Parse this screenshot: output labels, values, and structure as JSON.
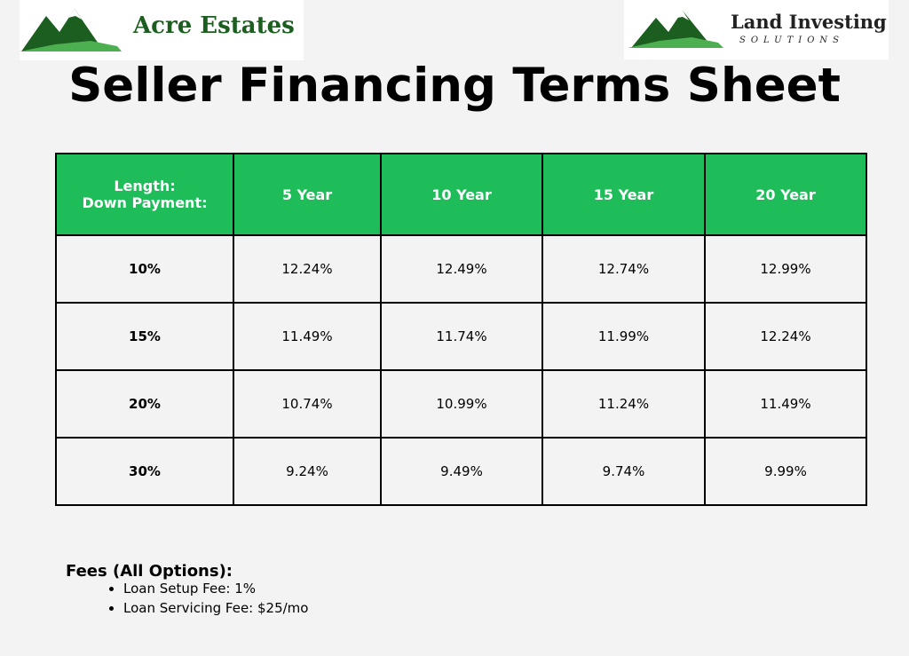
{
  "logos": {
    "left": "Acre Estates",
    "right": {
      "line1": "Land Investing",
      "line2": "SOLUTIONS"
    }
  },
  "title": "Seller Financing Terms Sheet",
  "table": {
    "corner": [
      "Length:",
      "Down Payment:"
    ],
    "columns": [
      "5 Year",
      "10 Year",
      "15 Year",
      "20 Year"
    ],
    "rows": [
      {
        "label": "10%",
        "values": [
          "12.24%",
          "12.49%",
          "12.74%",
          "12.99%"
        ]
      },
      {
        "label": "15%",
        "values": [
          "11.49%",
          "11.74%",
          "11.99%",
          "12.24%"
        ]
      },
      {
        "label": "20%",
        "values": [
          "10.74%",
          "10.99%",
          "11.24%",
          "11.49%"
        ]
      },
      {
        "label": "30%",
        "values": [
          "9.24%",
          "9.49%",
          "9.74%",
          "9.99%"
        ]
      }
    ]
  },
  "fees": {
    "heading": "Fees (All Options):",
    "items": [
      "Loan Setup Fee: 1%",
      "Loan Servicing Fee: $25/mo"
    ]
  }
}
